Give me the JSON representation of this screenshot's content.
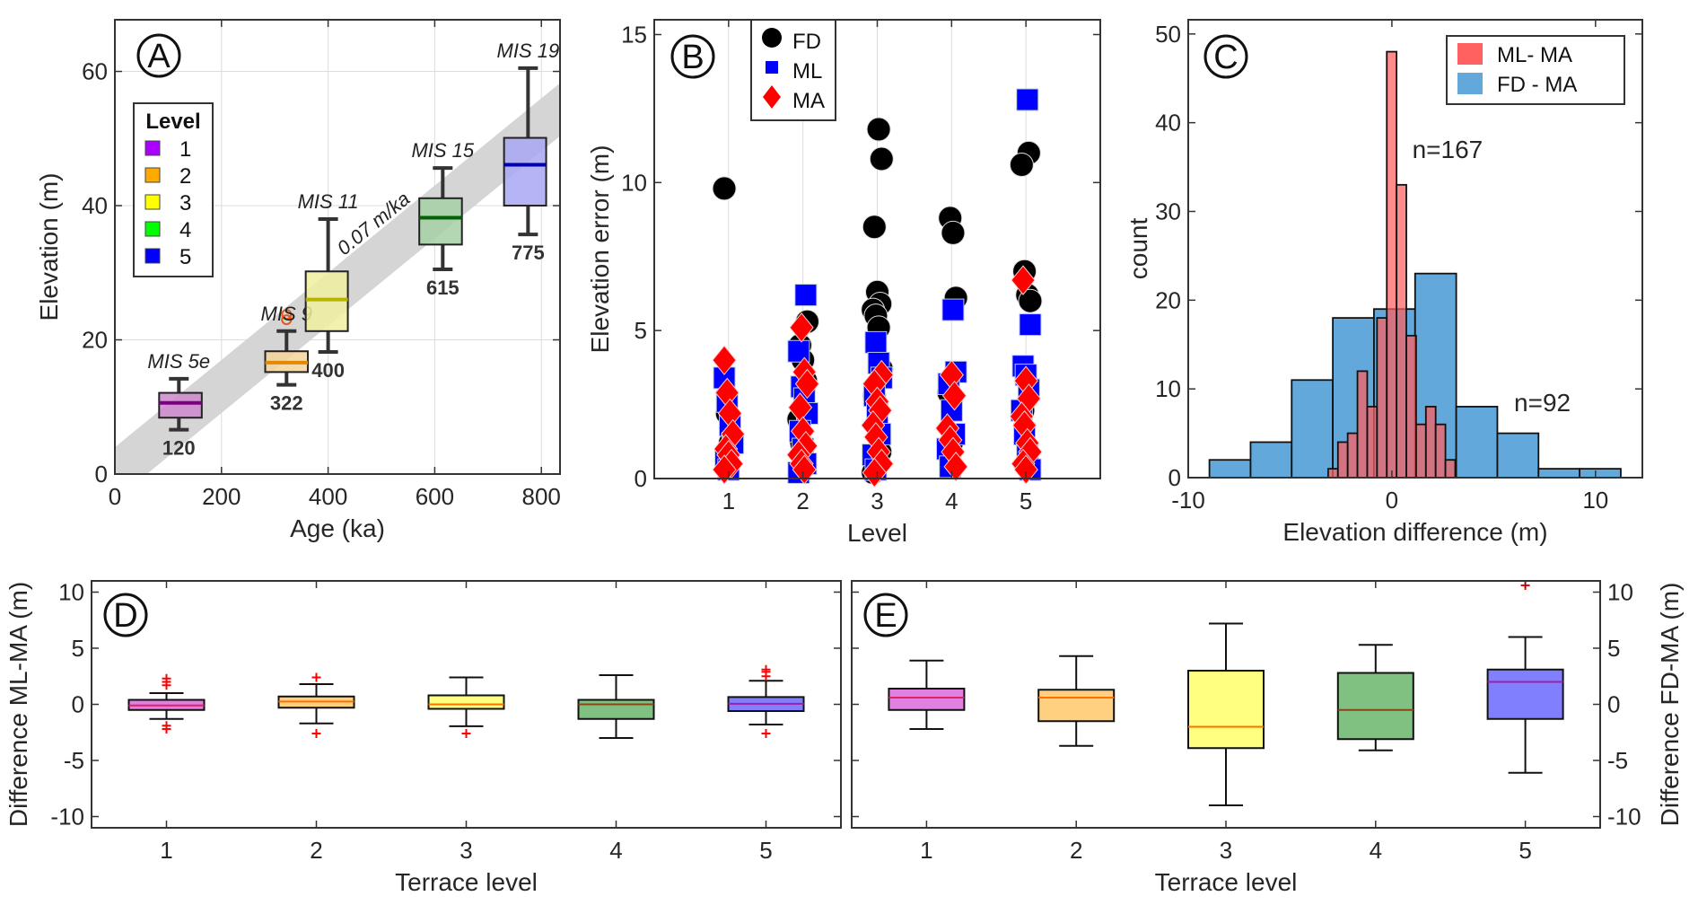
{
  "chart_data": [
    {
      "id": "A",
      "type": "box",
      "panel_label": "A",
      "xlabel": "Age (ka)",
      "ylabel": "Elevation (m)",
      "xlim": [
        0,
        835
      ],
      "ylim": [
        0,
        67.7
      ],
      "xticks": [
        0,
        200,
        400,
        600,
        800
      ],
      "yticks": [
        0,
        20,
        40,
        60
      ],
      "grid": true,
      "legend": {
        "title": "Level",
        "position": "upper-left",
        "entries": [
          {
            "label": "1",
            "color": "#AA00FF"
          },
          {
            "label": "2",
            "color": "#FFAA00"
          },
          {
            "label": "3",
            "color": "#FFFF00"
          },
          {
            "label": "4",
            "color": "#00FF00"
          },
          {
            "label": "5",
            "color": "#0000FF"
          }
        ]
      },
      "trend_band": {
        "label": "0.07 m/ka",
        "rate": 0.065,
        "upper_intercept": 4.0,
        "lower_intercept": -3.9,
        "color": "#d3d3d3"
      },
      "boxes": [
        {
          "level": 1,
          "age": 120,
          "age_label": "120",
          "mis": "MIS 5e",
          "age_range": [
            83,
            163
          ],
          "whisker_low": 6.6,
          "q1": 8.4,
          "median": 10.6,
          "q3": 12.1,
          "whisker_high": 14.2,
          "outliers": [],
          "fill": "#cc88cc",
          "median_color": "#7a0080"
        },
        {
          "level": 2,
          "age": 322,
          "age_label": "322",
          "mis": "MIS 9",
          "age_range": [
            282,
            362
          ],
          "whisker_low": 13.3,
          "q1": 15.2,
          "median": 16.6,
          "q3": 18.3,
          "whisker_high": 21.3,
          "outliers": [
            23.0,
            23.8
          ],
          "fill": "#f5d49a",
          "median_color": "#e08a00"
        },
        {
          "level": 3,
          "age": 400,
          "age_label": "400",
          "mis": "MIS 11",
          "age_range": [
            358,
            437
          ],
          "whisker_low": 18.2,
          "q1": 21.3,
          "median": 26.0,
          "q3": 30.2,
          "whisker_high": 38.0,
          "outliers": [],
          "fill": "#f0f0a0",
          "median_color": "#b5b500"
        },
        {
          "level": 4,
          "age": 615,
          "age_label": "615",
          "mis": "MIS 15",
          "age_range": [
            571,
            651
          ],
          "whisker_low": 30.5,
          "q1": 34.2,
          "median": 38.2,
          "q3": 41.1,
          "whisker_high": 45.6,
          "outliers": [],
          "fill": "#a6cfa6",
          "median_color": "#006400"
        },
        {
          "level": 5,
          "age": 775,
          "age_label": "775",
          "mis": "MIS 19",
          "age_range": [
            730,
            809
          ],
          "whisker_low": 35.7,
          "q1": 40.0,
          "median": 46.1,
          "q3": 50.1,
          "whisker_high": 60.5,
          "outliers": [],
          "fill": "#a8a8f5",
          "median_color": "#0000aa"
        }
      ]
    },
    {
      "id": "B",
      "type": "scatter",
      "panel_label": "B",
      "xlabel": "Level",
      "ylabel": "Elevation error (m)",
      "xlim": [
        0,
        6
      ],
      "ylim": [
        0,
        15.5
      ],
      "xticks": [
        1,
        2,
        3,
        4,
        5
      ],
      "yticks": [
        0,
        5,
        10,
        15
      ],
      "grid": "vertical",
      "legend": {
        "position": "top-left",
        "entries": [
          {
            "label": "FD",
            "marker": "circle",
            "color": "#000000"
          },
          {
            "label": "ML",
            "marker": "square",
            "color": "#0000FF"
          },
          {
            "label": "MA",
            "marker": "diamond",
            "color": "#FF0000"
          }
        ]
      },
      "series": [
        {
          "name": "FD",
          "marker": "circle",
          "color": "#000000",
          "points": [
            [
              1,
              9.8
            ],
            [
              1,
              2.2
            ],
            [
              1,
              1.2
            ],
            [
              2,
              5.3
            ],
            [
              2,
              4.5
            ],
            [
              2,
              4.0
            ],
            [
              2,
              3.3
            ],
            [
              2,
              2.0
            ],
            [
              2,
              1.2
            ],
            [
              3,
              11.8
            ],
            [
              3,
              10.8
            ],
            [
              3,
              8.5
            ],
            [
              3,
              6.3
            ],
            [
              3,
              5.9
            ],
            [
              3,
              5.7
            ],
            [
              3,
              5.5
            ],
            [
              3,
              5.1
            ],
            [
              3,
              3.7
            ],
            [
              3,
              2.8
            ],
            [
              3,
              1.9
            ],
            [
              3,
              0.9
            ],
            [
              3,
              0.2
            ],
            [
              4,
              8.8
            ],
            [
              4,
              8.3
            ],
            [
              4,
              6.1
            ],
            [
              4,
              2.9
            ],
            [
              4,
              1.2
            ],
            [
              5,
              11.0
            ],
            [
              5,
              10.6
            ],
            [
              5,
              7.0
            ],
            [
              5,
              6.2
            ],
            [
              5,
              6.0
            ],
            [
              5,
              2.3
            ]
          ]
        },
        {
          "name": "ML",
          "marker": "square",
          "color": "#0000FF",
          "points": [
            [
              1,
              3.4
            ],
            [
              1,
              2.6
            ],
            [
              1,
              1.8
            ],
            [
              1,
              1.2
            ],
            [
              1,
              0.6
            ],
            [
              1,
              0.3
            ],
            [
              2,
              6.2
            ],
            [
              2,
              4.3
            ],
            [
              2,
              3.1
            ],
            [
              2,
              2.7
            ],
            [
              2,
              2.2
            ],
            [
              2,
              1.6
            ],
            [
              2,
              1.0
            ],
            [
              2,
              0.5
            ],
            [
              2,
              0.2
            ],
            [
              3,
              4.6
            ],
            [
              3,
              3.9
            ],
            [
              3,
              3.4
            ],
            [
              3,
              2.8
            ],
            [
              3,
              2.2
            ],
            [
              3,
              1.5
            ],
            [
              3,
              0.8
            ],
            [
              3,
              0.3
            ],
            [
              4,
              5.7
            ],
            [
              4,
              3.6
            ],
            [
              4,
              3.2
            ],
            [
              4,
              2.3
            ],
            [
              4,
              1.5
            ],
            [
              4,
              1.0
            ],
            [
              4,
              0.4
            ],
            [
              5,
              12.8
            ],
            [
              5,
              5.2
            ],
            [
              5,
              3.8
            ],
            [
              5,
              3.5
            ],
            [
              5,
              3.0
            ],
            [
              5,
              2.3
            ],
            [
              5,
              1.5
            ],
            [
              5,
              0.8
            ],
            [
              5,
              0.3
            ]
          ]
        },
        {
          "name": "MA",
          "marker": "diamond",
          "color": "#FF0000",
          "points": [
            [
              1,
              4.0
            ],
            [
              1,
              2.9
            ],
            [
              1,
              2.2
            ],
            [
              1,
              1.5
            ],
            [
              1,
              1.0
            ],
            [
              1,
              0.8
            ],
            [
              1,
              0.5
            ],
            [
              1,
              0.3
            ],
            [
              2,
              5.1
            ],
            [
              2,
              3.6
            ],
            [
              2,
              3.2
            ],
            [
              2,
              2.4
            ],
            [
              2,
              1.6
            ],
            [
              2,
              1.1
            ],
            [
              2,
              0.8
            ],
            [
              2,
              0.5
            ],
            [
              2,
              0.3
            ],
            [
              3,
              3.5
            ],
            [
              3,
              3.2
            ],
            [
              3,
              2.6
            ],
            [
              3,
              2.3
            ],
            [
              3,
              1.8
            ],
            [
              3,
              1.4
            ],
            [
              3,
              0.9
            ],
            [
              3,
              0.5
            ],
            [
              3,
              0.2
            ],
            [
              4,
              3.5
            ],
            [
              4,
              2.8
            ],
            [
              4,
              1.7
            ],
            [
              4,
              1.3
            ],
            [
              4,
              0.9
            ],
            [
              4,
              0.4
            ],
            [
              5,
              6.7
            ],
            [
              5,
              3.3
            ],
            [
              5,
              2.7
            ],
            [
              5,
              2.1
            ],
            [
              5,
              1.8
            ],
            [
              5,
              1.2
            ],
            [
              5,
              0.9
            ],
            [
              5,
              0.5
            ],
            [
              5,
              0.3
            ]
          ]
        }
      ]
    },
    {
      "id": "C",
      "type": "histogram",
      "panel_label": "C",
      "xlabel": "Elevation difference (m)",
      "ylabel": "count",
      "xlim": [
        -10,
        12.3
      ],
      "ylim": [
        0,
        51.6
      ],
      "xticks": [
        -10,
        0,
        10
      ],
      "yticks": [
        0,
        10,
        20,
        30,
        40,
        50
      ],
      "legend": {
        "position": "top-right",
        "entries": [
          {
            "label": "ML- MA",
            "color": "#FF6060"
          },
          {
            "label": "FD - MA",
            "color": "#62A8DA"
          }
        ]
      },
      "series": [
        {
          "name": "FD - MA",
          "color": "#62A8DA",
          "annotation": "n=92",
          "annotation_color": "#5B8BA5",
          "annotation_at": [
            6,
            7.5
          ],
          "bin_edges": [
            -8.96,
            -6.94,
            -4.92,
            -2.9,
            -0.88,
            1.14,
            3.16,
            5.18,
            7.2,
            9.22,
            11.24
          ],
          "counts": [
            2,
            4,
            11,
            18,
            19,
            23,
            8,
            5,
            1,
            1
          ]
        },
        {
          "name": "ML- MA",
          "color": "#FF6060",
          "annotation": "n=167",
          "annotation_color": "#FF5A5A",
          "annotation_at": [
            1.0,
            36
          ],
          "bin_edges": [
            -3.13,
            -2.65,
            -2.17,
            -1.69,
            -1.21,
            -0.73,
            -0.25,
            0.23,
            0.71,
            1.19,
            1.67,
            2.15,
            2.63,
            3.11
          ],
          "counts": [
            1,
            4,
            5,
            12,
            8,
            18,
            48,
            33,
            16,
            6,
            8,
            6,
            2
          ]
        }
      ]
    },
    {
      "id": "D",
      "type": "box",
      "panel_label": "D",
      "xlabel": "Terrace level",
      "ylabel": "Difference ML-MA (m)",
      "xlim": [
        0.5,
        5.5
      ],
      "ylim": [
        -11,
        11
      ],
      "xticks": [
        1,
        2,
        3,
        4,
        5
      ],
      "yticks": [
        -10,
        -5,
        0,
        5,
        10
      ],
      "boxes": [
        {
          "level": 1,
          "whisker_low": -1.3,
          "q1": -0.5,
          "median": -0.1,
          "q3": 0.4,
          "whisker_high": 1.0,
          "outliers": [
            2.3,
            2.0,
            1.7,
            -1.9,
            -2.2
          ],
          "fill": "#e080e0",
          "median_color": "#e0206a"
        },
        {
          "level": 2,
          "whisker_low": -1.7,
          "q1": -0.3,
          "median": 0.25,
          "q3": 0.7,
          "whisker_high": 1.8,
          "outliers": [
            2.4,
            -2.6
          ],
          "fill": "#ffd080",
          "median_color": "#ff7000"
        },
        {
          "level": 3,
          "whisker_low": -1.95,
          "q1": -0.4,
          "median": 0.0,
          "q3": 0.8,
          "whisker_high": 2.4,
          "outliers": [
            -2.6
          ],
          "fill": "#ffff80",
          "median_color": "#ff7000"
        },
        {
          "level": 4,
          "whisker_low": -3.0,
          "q1": -1.3,
          "median": 0.0,
          "q3": 0.4,
          "whisker_high": 2.6,
          "outliers": [],
          "fill": "#80c080",
          "median_color": "#8b4513"
        },
        {
          "level": 5,
          "whisker_low": -1.8,
          "q1": -0.6,
          "median": 0.05,
          "q3": 0.65,
          "whisker_high": 2.1,
          "outliers": [
            3.1,
            2.9,
            2.5,
            -2.6
          ],
          "fill": "#8080ff",
          "median_color": "#a020a0"
        }
      ]
    },
    {
      "id": "E",
      "type": "box",
      "panel_label": "E",
      "xlabel": "Terrace level",
      "ylabel": "Difference FD-MA (m)",
      "ylabel_side": "right",
      "xlim": [
        0.5,
        5.5
      ],
      "ylim": [
        -11,
        11
      ],
      "xticks": [
        1,
        2,
        3,
        4,
        5
      ],
      "yticks": [
        -10,
        -5,
        0,
        5,
        10
      ],
      "boxes": [
        {
          "level": 1,
          "whisker_low": -2.2,
          "q1": -0.5,
          "median": 0.6,
          "q3": 1.4,
          "whisker_high": 3.9,
          "outliers": [],
          "fill": "#e080e0",
          "median_color": "#e0206a"
        },
        {
          "level": 2,
          "whisker_low": -3.7,
          "q1": -1.5,
          "median": 0.6,
          "q3": 1.3,
          "whisker_high": 4.3,
          "outliers": [],
          "fill": "#ffd080",
          "median_color": "#ff7000"
        },
        {
          "level": 3,
          "whisker_low": -9.0,
          "q1": -3.9,
          "median": -2.0,
          "q3": 3.0,
          "whisker_high": 7.2,
          "outliers": [],
          "fill": "#ffff80",
          "median_color": "#ff7000"
        },
        {
          "level": 4,
          "whisker_low": -4.1,
          "q1": -3.1,
          "median": -0.5,
          "q3": 2.8,
          "whisker_high": 5.3,
          "outliers": [],
          "fill": "#80c080",
          "median_color": "#8b4513"
        },
        {
          "level": 5,
          "whisker_low": -6.1,
          "q1": -1.3,
          "median": 2.0,
          "q3": 3.1,
          "whisker_high": 6.0,
          "outliers": [
            10.6
          ],
          "fill": "#8080ff",
          "median_color": "#a020a0"
        }
      ]
    }
  ]
}
